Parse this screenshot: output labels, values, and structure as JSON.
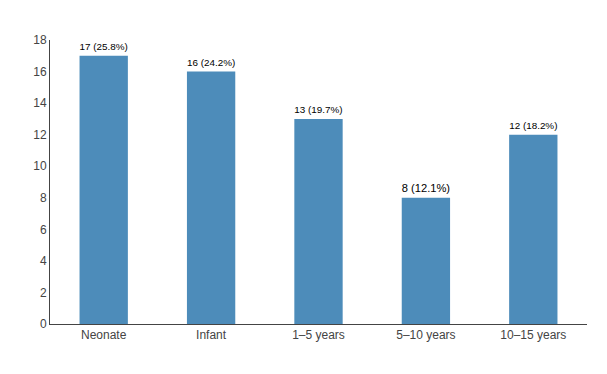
{
  "chart_data": {
    "type": "bar",
    "categories": [
      "Neonate",
      "Infant",
      "1–5 years",
      "5–10 years",
      "10–15 years"
    ],
    "values": [
      17,
      16,
      13,
      8,
      12
    ],
    "value_labels": [
      "17 (25.8%)",
      "16 (24.2%)",
      "13 (19.7%)",
      "8 (12.1%)",
      "12 (18.2%)"
    ],
    "data_labels": true,
    "color": "#4d8cba",
    "ylim": [
      0,
      18
    ],
    "yticks": [
      0,
      2,
      4,
      6,
      8,
      10,
      12,
      14,
      16,
      18
    ],
    "grid": false
  }
}
